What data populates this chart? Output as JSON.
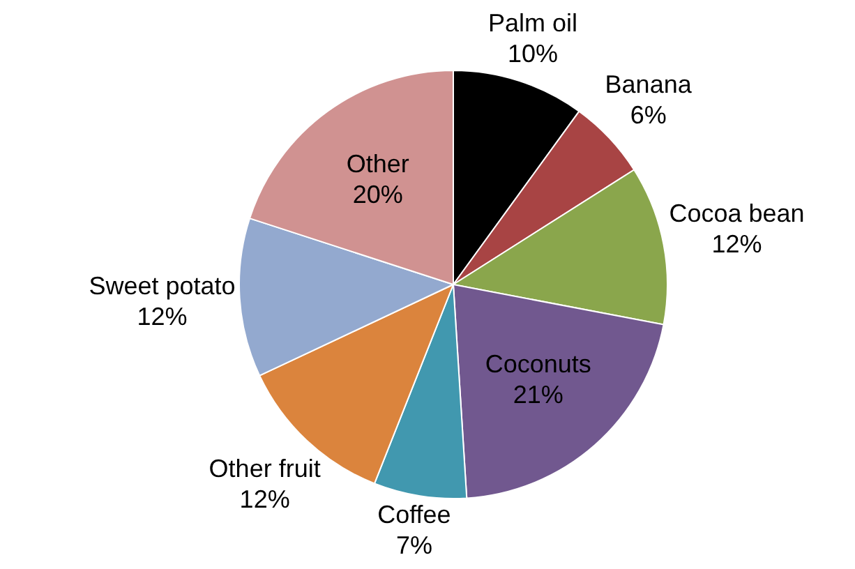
{
  "chart_data": {
    "type": "pie",
    "categories": [
      "Palm oil",
      "Banana",
      "Cocoa bean",
      "Coconuts",
      "Coffee",
      "Other fruit",
      "Sweet potato",
      "Other"
    ],
    "values": [
      10,
      6,
      12,
      21,
      7,
      12,
      12,
      20
    ],
    "colors": [
      "#000000",
      "#a84444",
      "#8aa64c",
      "#71588f",
      "#4198af",
      "#db843d",
      "#93a9cf",
      "#d09291"
    ],
    "value_labels": [
      "10%",
      "6%",
      "12%",
      "21%",
      "7%",
      "12%",
      "12%",
      "20%"
    ],
    "legend": false
  }
}
